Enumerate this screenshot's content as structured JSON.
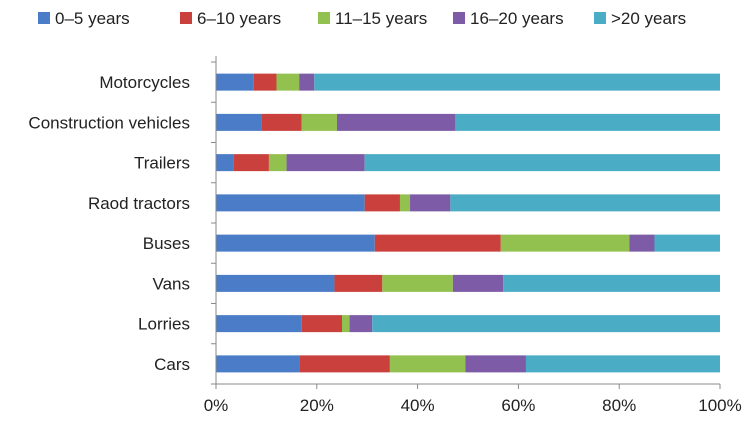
{
  "chart_data": {
    "type": "bar",
    "orientation": "horizontal",
    "stacked": "percent",
    "categories": [
      "Motorcycles",
      "Construction vehicles",
      "Trailers",
      "Raod tractors",
      "Buses",
      "Vans",
      "Lorries",
      "Cars"
    ],
    "series": [
      {
        "name": "0–5 years",
        "color": "#4a7cc7",
        "values": [
          7.5,
          9.0,
          3.5,
          29.5,
          31.5,
          23.5,
          17.0,
          16.5
        ]
      },
      {
        "name": "6–10 years",
        "color": "#c9403c",
        "values": [
          4.5,
          8.0,
          7.0,
          7.0,
          25.0,
          9.5,
          8.0,
          18.0
        ]
      },
      {
        "name": "11–15 years",
        "color": "#93c14f",
        "values": [
          4.5,
          7.0,
          3.5,
          2.0,
          25.5,
          14.0,
          1.5,
          15.0
        ]
      },
      {
        "name": "16–20 years",
        "color": "#7d5ba6",
        "values": [
          3.0,
          23.5,
          15.5,
          8.0,
          5.0,
          10.0,
          4.5,
          12.0
        ]
      },
      {
        "name": ">20 years",
        "color": "#4bacc6",
        "values": [
          80.5,
          52.5,
          70.5,
          53.5,
          13.0,
          43.0,
          69.0,
          38.5
        ]
      }
    ],
    "x_ticks": [
      "0%",
      "20%",
      "40%",
      "60%",
      "80%",
      "100%"
    ],
    "xlim": [
      0,
      100
    ],
    "title": "",
    "xlabel": "",
    "ylabel": "",
    "grid": false,
    "legend_position": "top"
  }
}
